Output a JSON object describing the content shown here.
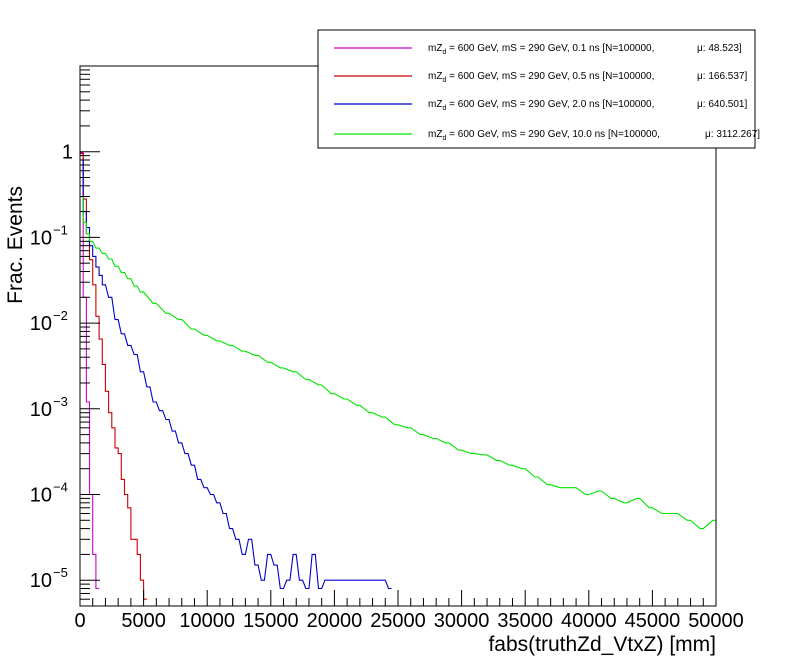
{
  "chart_data": {
    "type": "line",
    "xlabel": "fabs(truthZd_VtxZ) [mm]",
    "ylabel": "Frac. Events",
    "xlim": [
      0,
      50000
    ],
    "ylim": [
      5e-06,
      10
    ],
    "yscale": "log",
    "bin_width": 250,
    "grid": false,
    "legend_position": "top-right",
    "xticks": [
      "0",
      "5000",
      "10000",
      "15000",
      "20000",
      "25000",
      "30000",
      "35000",
      "40000",
      "45000",
      "50000"
    ],
    "yticks": [
      "1",
      "10",
      "10",
      "10",
      "10",
      "10"
    ],
    "ytick_exponents": [
      "",
      "−1",
      "−2",
      "−3",
      "−4",
      "−5"
    ],
    "series": [
      {
        "label_prefix": "mZ",
        "label_sub": "d",
        "label_text": " = 600 GeV, mS = 290 GeV, 0.1 ns [N=100000,",
        "label_mean": "μ: 48.523]",
        "color": "#cc00cc",
        "x": [
          250,
          500,
          750,
          1000,
          1250,
          1500
        ],
        "y": [
          0.98,
          0.02,
          0.0012,
          0.0001,
          2e-05,
          8e-06
        ]
      },
      {
        "label_prefix": "mZ",
        "label_sub": "d",
        "label_text": " = 600 GeV, mS = 290 GeV, 0.5 ns [N=100000,",
        "label_mean": "μ: 166.537]",
        "color": "#cc0000",
        "x": [
          250,
          500,
          750,
          1000,
          1250,
          1500,
          1750,
          2000,
          2250,
          2500,
          2750,
          3000,
          3250,
          3500,
          3750,
          4000,
          4250,
          4500,
          4750,
          5000,
          5250
        ],
        "y": [
          0.95,
          0.28,
          0.11,
          0.055,
          0.028,
          0.012,
          0.0065,
          0.0033,
          0.0016,
          0.0009,
          0.0006,
          0.00035,
          0.0003,
          0.00015,
          0.0001,
          7e-05,
          3e-05,
          3e-05,
          2e-05,
          1e-05,
          6e-06
        ]
      },
      {
        "label_prefix": "mZ",
        "label_sub": "d",
        "label_text": " = 600 GeV, mS = 290 GeV, 2.0 ns [N=100000,",
        "label_mean": "μ: 640.501]",
        "color": "#0000cc",
        "x": [
          250,
          500,
          750,
          1000,
          1250,
          1500,
          1750,
          2000,
          2500,
          3000,
          3500,
          4000,
          4500,
          5000,
          5500,
          6000,
          6500,
          7000,
          7500,
          8000,
          8500,
          9000,
          9500,
          10000,
          10500,
          11000,
          11500,
          12000,
          12500,
          13000,
          13500,
          14000,
          14500,
          15000,
          15500,
          16000,
          16500,
          17000,
          17500,
          18000,
          18500,
          19000,
          19500,
          24000,
          24500
        ],
        "y": [
          0.8,
          0.2,
          0.13,
          0.08,
          0.06,
          0.045,
          0.036,
          0.028,
          0.02,
          0.011,
          0.0075,
          0.0055,
          0.0043,
          0.0027,
          0.0018,
          0.0012,
          0.00095,
          0.00075,
          0.00055,
          0.0004,
          0.0003,
          0.00022,
          0.00015,
          0.00012,
          0.0001,
          8e-05,
          6e-05,
          4e-05,
          3e-05,
          2e-05,
          3e-05,
          1.5e-05,
          1e-05,
          2e-05,
          1.5e-05,
          8e-06,
          1e-05,
          2e-05,
          1e-05,
          8e-06,
          2e-05,
          8e-06,
          1e-05,
          1e-05,
          8e-06
        ]
      },
      {
        "label_prefix": "mZ",
        "label_sub": "d",
        "label_text": " = 600 GeV, mS = 290 GeV, 10.0 ns [N=100000,",
        "label_mean": "μ: 3112.267]",
        "color": "#00e600",
        "x": [
          250,
          500,
          750,
          1000,
          1500,
          2000,
          2500,
          3000,
          3500,
          4000,
          4500,
          5000,
          6000,
          7000,
          8000,
          9000,
          10000,
          11000,
          12000,
          13000,
          14000,
          15000,
          16000,
          17000,
          18000,
          19000,
          20000,
          21000,
          22000,
          23000,
          24000,
          25000,
          26000,
          27000,
          28000,
          29000,
          30000,
          31000,
          32000,
          33000,
          34000,
          35000,
          36000,
          37000,
          38000,
          39000,
          40000,
          41000,
          42000,
          43000,
          44000,
          45000,
          46000,
          47000,
          48000,
          49000,
          50000
        ],
        "y": [
          0.3,
          0.15,
          0.11,
          0.09,
          0.075,
          0.065,
          0.056,
          0.046,
          0.039,
          0.033,
          0.027,
          0.023,
          0.017,
          0.013,
          0.011,
          0.0085,
          0.0072,
          0.0062,
          0.0055,
          0.0047,
          0.0042,
          0.0035,
          0.003,
          0.0027,
          0.0022,
          0.0019,
          0.0015,
          0.0013,
          0.0011,
          0.0009,
          0.0008,
          0.00065,
          0.0006,
          0.0005,
          0.00045,
          0.0004,
          0.00033,
          0.0003,
          0.00029,
          0.00025,
          0.00022,
          0.0002,
          0.00016,
          0.00013,
          0.00012,
          0.00012,
          0.0001,
          0.00011,
          9e-05,
          8e-05,
          9e-05,
          7e-05,
          6e-05,
          6e-05,
          5e-05,
          4e-05,
          5e-05
        ]
      }
    ]
  }
}
